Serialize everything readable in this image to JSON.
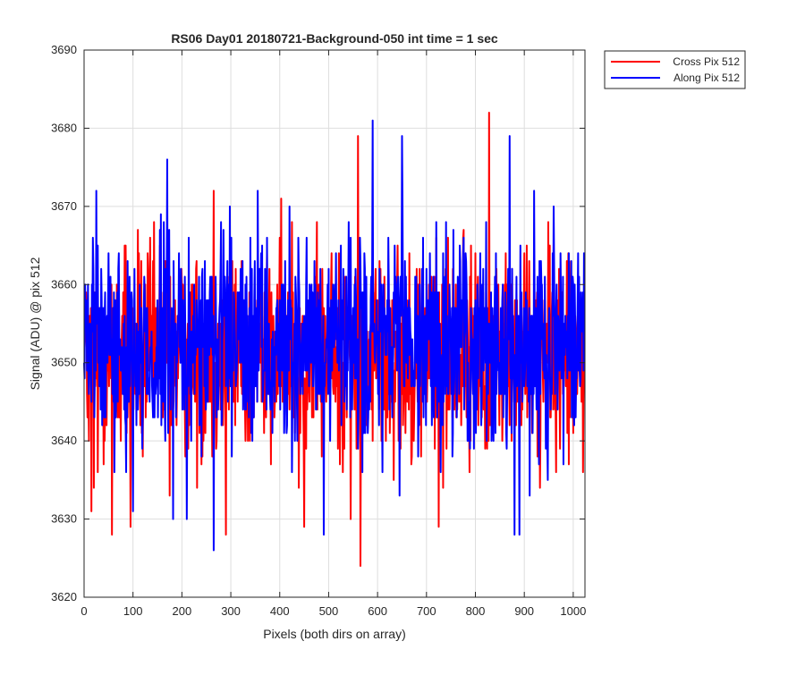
{
  "chart_data": {
    "type": "line",
    "title": "RS06 Day01 20180721-Background-050 int time = 1 sec",
    "xlabel": "Pixels (both dirs on array)",
    "ylabel": "Signal (ADU) @ pix 512",
    "xlim": [
      0,
      1024
    ],
    "ylim": [
      3620,
      3690
    ],
    "xticks": [
      0,
      100,
      200,
      300,
      400,
      500,
      600,
      700,
      800,
      900,
      1000
    ],
    "yticks": [
      3620,
      3630,
      3640,
      3650,
      3660,
      3670,
      3680,
      3690
    ],
    "grid": true,
    "legend_position": "outside-top-right",
    "point_count": 1024,
    "series": [
      {
        "name": "Cross Pix 512",
        "color": "#ff0000",
        "mean": 3651,
        "approx_min": 3624,
        "approx_max": 3682,
        "notable_points": [
          [
            0,
            3652
          ],
          [
            10,
            3640
          ],
          [
            15,
            3631
          ],
          [
            20,
            3634
          ],
          [
            28,
            3636
          ],
          [
            40,
            3637
          ],
          [
            57,
            3628
          ],
          [
            75,
            3640
          ],
          [
            85,
            3665
          ],
          [
            95,
            3629
          ],
          [
            110,
            3667
          ],
          [
            120,
            3638
          ],
          [
            130,
            3664
          ],
          [
            155,
            3665
          ],
          [
            175,
            3633
          ],
          [
            200,
            3660
          ],
          [
            220,
            3660
          ],
          [
            240,
            3637
          ],
          [
            265,
            3672
          ],
          [
            290,
            3628
          ],
          [
            310,
            3662
          ],
          [
            330,
            3640
          ],
          [
            355,
            3662
          ],
          [
            395,
            3660
          ],
          [
            425,
            3668
          ],
          [
            450,
            3629
          ],
          [
            480,
            3660
          ],
          [
            505,
            3660
          ],
          [
            525,
            3658
          ],
          [
            545,
            3630
          ],
          [
            560,
            3679
          ],
          [
            565,
            3624
          ],
          [
            575,
            3660
          ],
          [
            600,
            3658
          ],
          [
            640,
            3660
          ],
          [
            680,
            3662
          ],
          [
            705,
            3660
          ],
          [
            720,
            3666
          ],
          [
            725,
            3629
          ],
          [
            760,
            3660
          ],
          [
            775,
            3666
          ],
          [
            790,
            3640
          ],
          [
            800,
            3664
          ],
          [
            828,
            3682
          ],
          [
            860,
            3660
          ],
          [
            900,
            3664
          ],
          [
            920,
            3656
          ],
          [
            960,
            3664
          ],
          [
            990,
            3664
          ],
          [
            1000,
            3641
          ],
          [
            1020,
            3636
          ]
        ]
      },
      {
        "name": "Along Pix 512",
        "color": "#0000ff",
        "mean": 3652,
        "approx_min": 3626,
        "approx_max": 3681,
        "notable_points": [
          [
            0,
            3650
          ],
          [
            12,
            3655
          ],
          [
            18,
            3666
          ],
          [
            25,
            3672
          ],
          [
            35,
            3662
          ],
          [
            50,
            3664
          ],
          [
            62,
            3636
          ],
          [
            80,
            3648
          ],
          [
            100,
            3631
          ],
          [
            120,
            3643
          ],
          [
            140,
            3645
          ],
          [
            155,
            3667
          ],
          [
            170,
            3676
          ],
          [
            182,
            3630
          ],
          [
            210,
            3630
          ],
          [
            225,
            3660
          ],
          [
            240,
            3638
          ],
          [
            265,
            3626
          ],
          [
            280,
            3668
          ],
          [
            300,
            3666
          ],
          [
            330,
            3660
          ],
          [
            355,
            3672
          ],
          [
            380,
            3646
          ],
          [
            420,
            3670
          ],
          [
            455,
            3666
          ],
          [
            490,
            3628
          ],
          [
            515,
            3664
          ],
          [
            555,
            3662
          ],
          [
            590,
            3681
          ],
          [
            605,
            3660
          ],
          [
            620,
            3658
          ],
          [
            645,
            3633
          ],
          [
            650,
            3679
          ],
          [
            700,
            3662
          ],
          [
            720,
            3668
          ],
          [
            740,
            3668
          ],
          [
            780,
            3664
          ],
          [
            810,
            3664
          ],
          [
            840,
            3661
          ],
          [
            870,
            3679
          ],
          [
            880,
            3628
          ],
          [
            890,
            3628
          ],
          [
            920,
            3672
          ],
          [
            935,
            3660
          ],
          [
            960,
            3670
          ],
          [
            980,
            3637
          ],
          [
            1000,
            3660
          ],
          [
            1010,
            3664
          ],
          [
            1023,
            3650
          ]
        ]
      }
    ]
  }
}
